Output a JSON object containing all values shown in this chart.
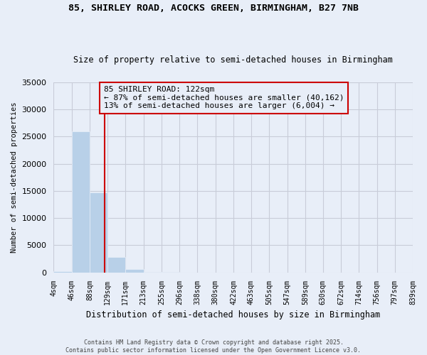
{
  "title": "85, SHIRLEY ROAD, ACOCKS GREEN, BIRMINGHAM, B27 7NB",
  "subtitle": "Size of property relative to semi-detached houses in Birmingham",
  "xlabel": "Distribution of semi-detached houses by size in Birmingham",
  "ylabel": "Number of semi-detached properties",
  "annotation_line1": "85 SHIRLEY ROAD: 122sqm",
  "annotation_line2": "← 87% of semi-detached houses are smaller (40,162)",
  "annotation_line3": "13% of semi-detached houses are larger (6,004) →",
  "footer1": "Contains HM Land Registry data © Crown copyright and database right 2025.",
  "footer2": "Contains public sector information licensed under the Open Government Licence v3.0.",
  "property_size": 122,
  "bin_edges": [
    4,
    46,
    88,
    129,
    171,
    213,
    255,
    296,
    338,
    380,
    422,
    463,
    505,
    547,
    589,
    630,
    672,
    714,
    756,
    797,
    839
  ],
  "bar_heights": [
    180,
    26000,
    14700,
    2800,
    600,
    120,
    50,
    20,
    10,
    5,
    3,
    2,
    1,
    1,
    1,
    0,
    0,
    0,
    0,
    0
  ],
  "bar_color": "#b8d0e8",
  "vline_color": "#cc0000",
  "background_color": "#e8eef8",
  "annotation_box_edgecolor": "#cc0000",
  "ylim": [
    0,
    35000
  ],
  "yticks": [
    0,
    5000,
    10000,
    15000,
    20000,
    25000,
    30000,
    35000
  ]
}
